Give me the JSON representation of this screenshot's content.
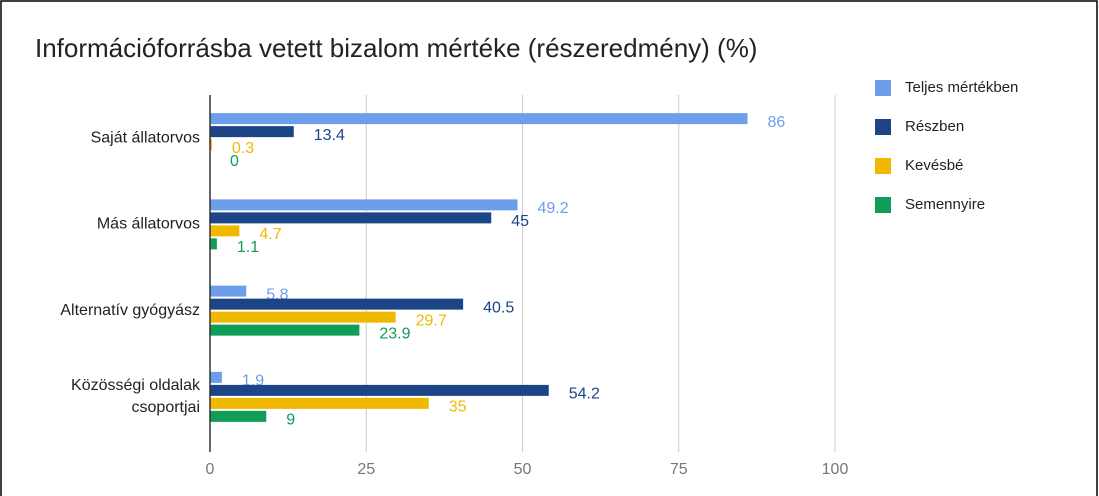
{
  "chart_data": {
    "type": "bar",
    "orientation": "horizontal",
    "title": "Információforrásba vetett bizalom mértéke (részeredmény) (%)",
    "categories": [
      "Saját állatorvos",
      "Más állatorvos",
      "Alternatív gyógyász",
      "Közösségi oldalak csoportjai"
    ],
    "series": [
      {
        "name": "Teljes mértékben",
        "color": "#6d9eeb",
        "values": [
          86,
          49.2,
          5.8,
          1.9
        ]
      },
      {
        "name": "Részben",
        "color": "#1c4587",
        "values": [
          13.4,
          45,
          40.5,
          54.2
        ]
      },
      {
        "name": "Kevésbé",
        "color": "#f1b800",
        "values": [
          0.3,
          4.7,
          29.7,
          35
        ]
      },
      {
        "name": "Semennyire",
        "color": "#0f9d58",
        "values": [
          0,
          1.1,
          23.9,
          9
        ]
      }
    ],
    "xlim": [
      0,
      100
    ],
    "xticks": [
      0,
      25,
      50,
      75,
      100
    ],
    "grid": true,
    "legend": "right"
  }
}
